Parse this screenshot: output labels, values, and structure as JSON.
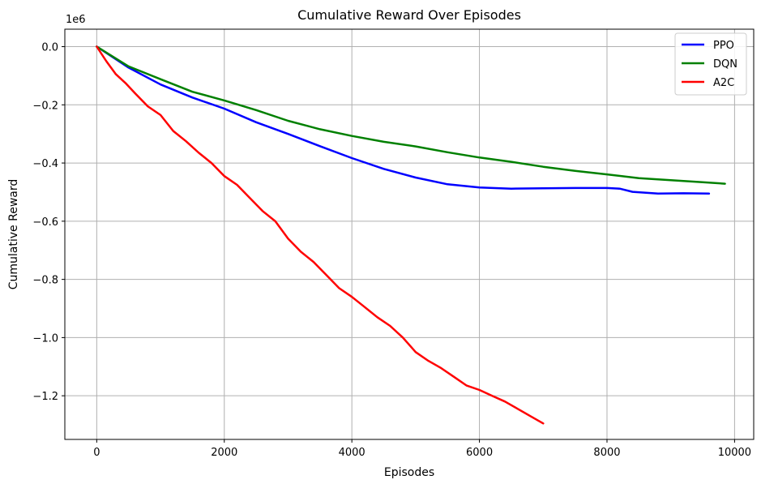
{
  "chart_data": {
    "type": "line",
    "title": "Cumulative Reward Over Episodes",
    "xlabel": "Episodes",
    "ylabel": "Cumulative Reward",
    "y_offset_label": "1e6",
    "xlim": [
      -500,
      10300
    ],
    "ylim": [
      -1.35,
      0.06
    ],
    "x_ticks": [
      0,
      2000,
      4000,
      6000,
      8000,
      10000
    ],
    "x_tick_labels": [
      "0",
      "2000",
      "4000",
      "6000",
      "8000",
      "10000"
    ],
    "y_ticks": [
      0.0,
      -0.2,
      -0.4,
      -0.6,
      -0.8,
      -1.0,
      -1.2
    ],
    "y_tick_labels": [
      "0.0",
      "−0.2",
      "−0.4",
      "−0.6",
      "−0.8",
      "−1.0",
      "−1.2"
    ],
    "grid": true,
    "legend_position": "top-right",
    "series": [
      {
        "name": "PPO",
        "color": "#0000ff",
        "x": [
          0,
          500,
          1000,
          1500,
          2000,
          2500,
          3000,
          3500,
          4000,
          4500,
          5000,
          5500,
          6000,
          6500,
          7000,
          7500,
          8000,
          8200,
          8400,
          8800,
          9200,
          9600
        ],
        "y": [
          0.0,
          -0.072,
          -0.13,
          -0.175,
          -0.213,
          -0.26,
          -0.3,
          -0.342,
          -0.383,
          -0.42,
          -0.45,
          -0.473,
          -0.484,
          -0.488,
          -0.487,
          -0.486,
          -0.486,
          -0.488,
          -0.499,
          -0.505,
          -0.504,
          -0.505
        ]
      },
      {
        "name": "DQN",
        "color": "#008000",
        "x": [
          0,
          500,
          1000,
          1500,
          2000,
          2500,
          3000,
          3500,
          4000,
          4500,
          5000,
          5500,
          6000,
          6500,
          7000,
          7500,
          8000,
          8500,
          9000,
          9500,
          9850
        ],
        "y": [
          0.0,
          -0.068,
          -0.112,
          -0.155,
          -0.185,
          -0.218,
          -0.255,
          -0.284,
          -0.307,
          -0.327,
          -0.343,
          -0.363,
          -0.381,
          -0.396,
          -0.413,
          -0.427,
          -0.439,
          -0.452,
          -0.459,
          -0.466,
          -0.471
        ]
      },
      {
        "name": "A2C",
        "color": "#ff0000",
        "x": [
          0,
          150,
          300,
          450,
          600,
          800,
          1000,
          1200,
          1400,
          1600,
          1800,
          2000,
          2200,
          2400,
          2600,
          2800,
          3000,
          3200,
          3400,
          3600,
          3800,
          4000,
          4200,
          4400,
          4600,
          4800,
          5000,
          5200,
          5400,
          5600,
          5800,
          6000,
          6200,
          6400,
          6600,
          6800,
          7000
        ],
        "y": [
          0.0,
          -0.05,
          -0.095,
          -0.125,
          -0.16,
          -0.205,
          -0.235,
          -0.29,
          -0.325,
          -0.365,
          -0.4,
          -0.445,
          -0.475,
          -0.52,
          -0.565,
          -0.6,
          -0.66,
          -0.705,
          -0.74,
          -0.785,
          -0.83,
          -0.86,
          -0.895,
          -0.93,
          -0.96,
          -1.0,
          -1.05,
          -1.08,
          -1.105,
          -1.135,
          -1.165,
          -1.18,
          -1.2,
          -1.22,
          -1.245,
          -1.27,
          -1.295
        ]
      }
    ]
  }
}
